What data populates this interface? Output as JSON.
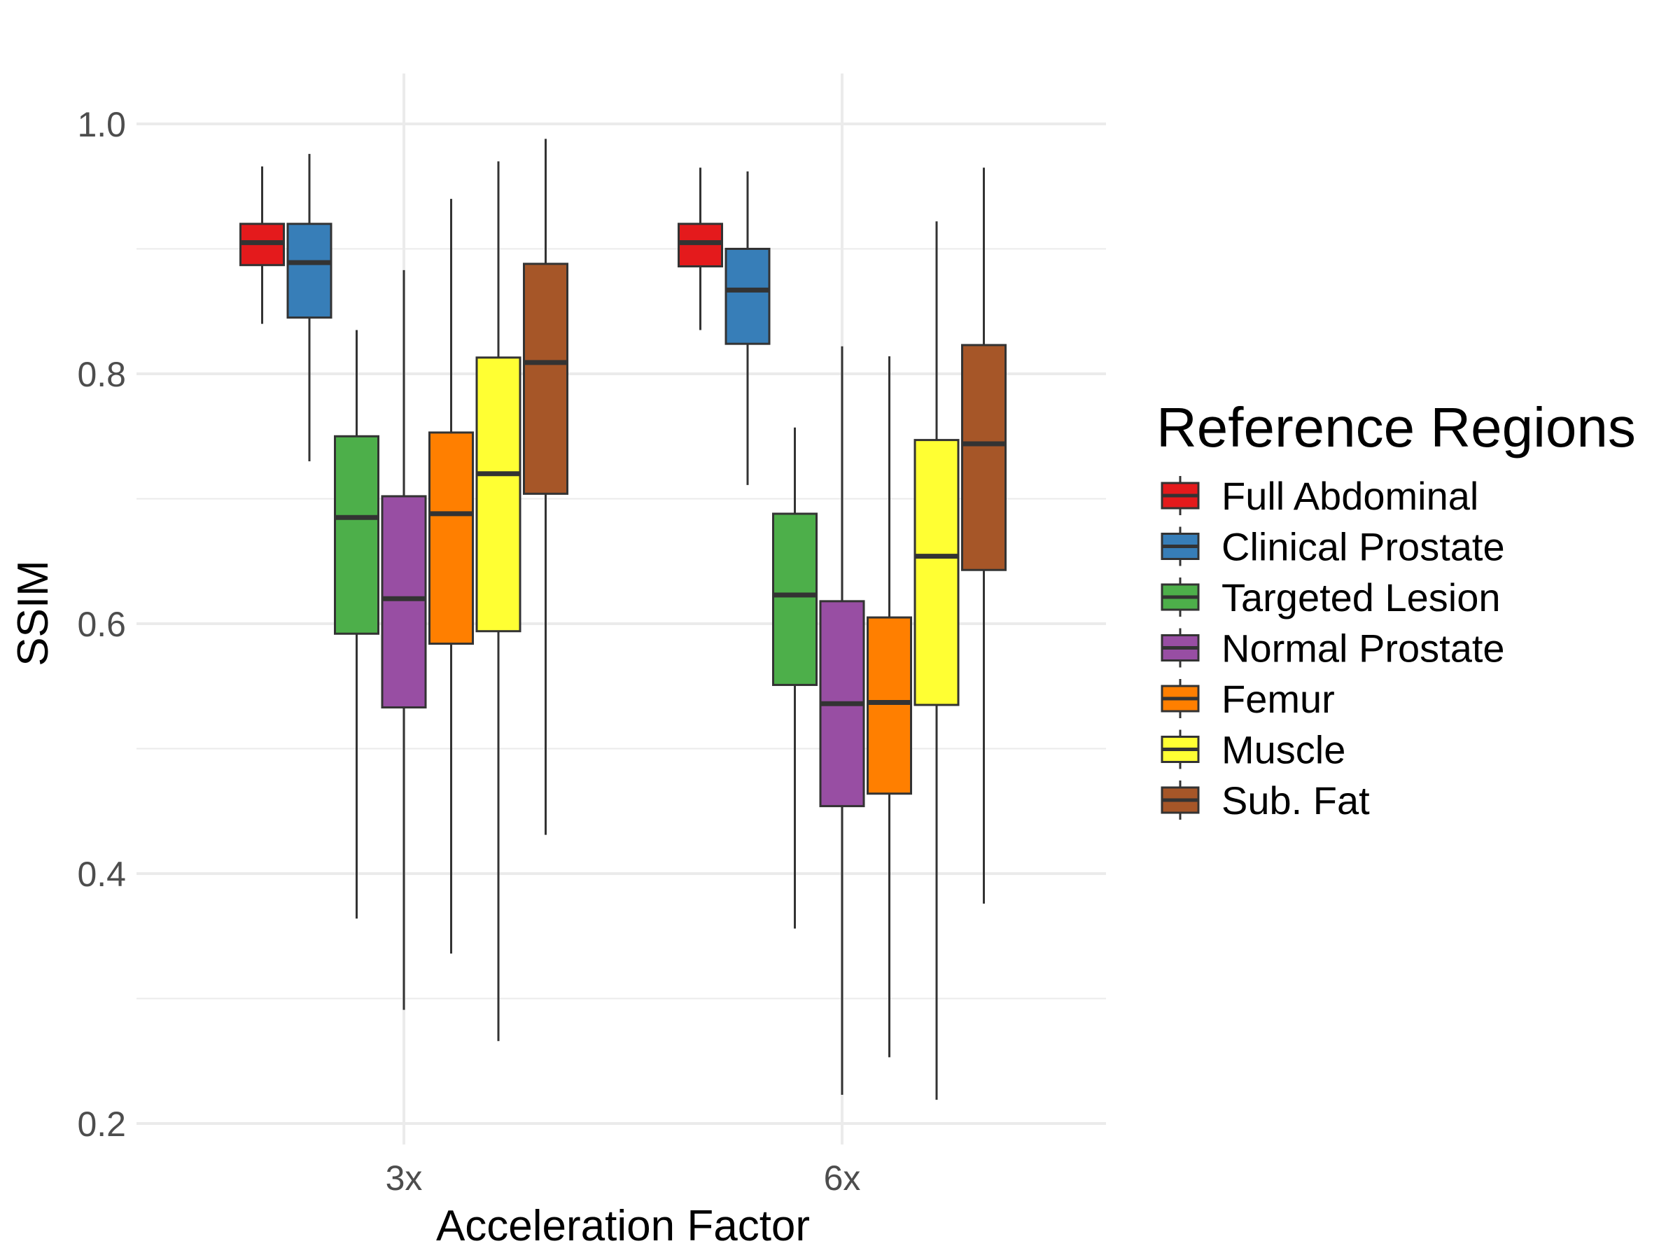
{
  "chart_data": {
    "type": "boxplot",
    "title": "",
    "xlabel": "Acceleration Factor",
    "ylabel": "SSIM",
    "ylim": [
      0.19,
      1.03
    ],
    "yticks": [
      0.2,
      0.4,
      0.6,
      0.8,
      1.0
    ],
    "ytick_labels": [
      "0.2",
      "0.4",
      "0.6",
      "0.8",
      "1.0"
    ],
    "grid": true,
    "categories": [
      "3x",
      "6x"
    ],
    "legend": {
      "title": "Reference Regions",
      "position": "right"
    },
    "series": [
      {
        "name": "Full Abdominal",
        "color": "#e41a1c",
        "boxes": [
          {
            "min": 0.84,
            "q1": 0.887,
            "median": 0.905,
            "q3": 0.92,
            "max": 0.966
          },
          {
            "min": 0.835,
            "q1": 0.886,
            "median": 0.905,
            "q3": 0.92,
            "max": 0.965
          }
        ]
      },
      {
        "name": "Clinical Prostate",
        "color": "#377eb8",
        "boxes": [
          {
            "min": 0.73,
            "q1": 0.845,
            "median": 0.889,
            "q3": 0.92,
            "max": 0.976
          },
          {
            "min": 0.711,
            "q1": 0.824,
            "median": 0.867,
            "q3": 0.9,
            "max": 0.962
          }
        ]
      },
      {
        "name": "Targeted Lesion",
        "color": "#4daf4a",
        "boxes": [
          {
            "min": 0.364,
            "q1": 0.592,
            "median": 0.685,
            "q3": 0.75,
            "max": 0.835
          },
          {
            "min": 0.356,
            "q1": 0.551,
            "median": 0.623,
            "q3": 0.688,
            "max": 0.757
          }
        ]
      },
      {
        "name": "Normal Prostate",
        "color": "#984ea3",
        "boxes": [
          {
            "min": 0.291,
            "q1": 0.533,
            "median": 0.62,
            "q3": 0.702,
            "max": 0.883
          },
          {
            "min": 0.223,
            "q1": 0.454,
            "median": 0.536,
            "q3": 0.618,
            "max": 0.822
          }
        ]
      },
      {
        "name": "Femur",
        "color": "#ff7f00",
        "boxes": [
          {
            "min": 0.336,
            "q1": 0.584,
            "median": 0.688,
            "q3": 0.753,
            "max": 0.94
          },
          {
            "min": 0.253,
            "q1": 0.464,
            "median": 0.537,
            "q3": 0.605,
            "max": 0.814
          }
        ]
      },
      {
        "name": "Muscle",
        "color": "#ffff33",
        "boxes": [
          {
            "min": 0.266,
            "q1": 0.594,
            "median": 0.72,
            "q3": 0.813,
            "max": 0.97
          },
          {
            "min": 0.219,
            "q1": 0.535,
            "median": 0.654,
            "q3": 0.747,
            "max": 0.922
          }
        ]
      },
      {
        "name": "Sub. Fat",
        "color": "#a65628",
        "boxes": [
          {
            "min": 0.431,
            "q1": 0.704,
            "median": 0.809,
            "q3": 0.888,
            "max": 0.988
          },
          {
            "min": 0.376,
            "q1": 0.643,
            "median": 0.744,
            "q3": 0.823,
            "max": 0.965
          }
        ]
      }
    ]
  }
}
